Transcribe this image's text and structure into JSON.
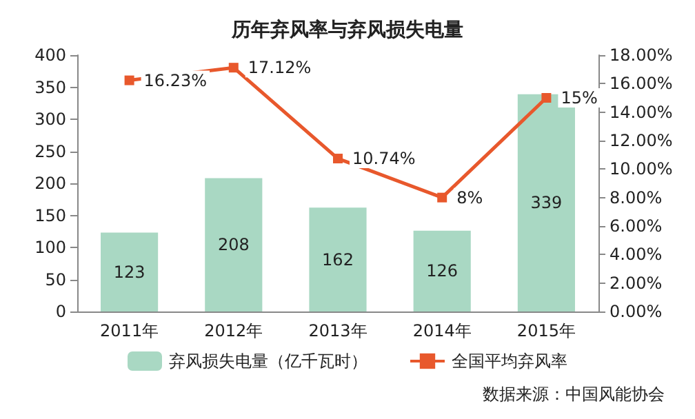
{
  "chart_data": {
    "type": "bar",
    "title": "历年弃风率与弃风损失电量",
    "categories": [
      "2011年",
      "2012年",
      "2013年",
      "2014年",
      "2015年"
    ],
    "series": [
      {
        "name": "弃风损失电量（亿千瓦时）",
        "color": "#a9d8c3",
        "values": [
          123,
          208,
          162,
          126,
          339
        ],
        "value_labels": [
          "123",
          "208",
          "162",
          "126",
          "339"
        ]
      },
      {
        "name": "全国平均弃风率",
        "type": "line",
        "axis": "y2",
        "color": "#e8582c",
        "values": [
          16.23,
          17.12,
          10.74,
          8,
          15
        ],
        "value_labels": [
          "16.23%",
          "17.12%",
          "10.74%",
          "8%",
          "15%"
        ],
        "marker": "square"
      }
    ],
    "ylim": [
      0,
      400
    ],
    "yticks": [
      0,
      50,
      100,
      150,
      200,
      250,
      300,
      350,
      400
    ],
    "y2lim": [
      0,
      18
    ],
    "y2ticks": [
      {
        "value": 0,
        "label": "0.00%"
      },
      {
        "value": 2,
        "label": "2.00%"
      },
      {
        "value": 4,
        "label": "4.00%"
      },
      {
        "value": 6,
        "label": "6.00%"
      },
      {
        "value": 8,
        "label": "8.00%"
      },
      {
        "value": 10,
        "label": "10.00%"
      },
      {
        "value": 12,
        "label": "12.00%"
      },
      {
        "value": 14,
        "label": "14.00%"
      },
      {
        "value": 16,
        "label": "16.00%"
      },
      {
        "value": 18,
        "label": "18.00%"
      }
    ],
    "grid": false,
    "legend": "bottom",
    "annotations": [
      "数据来源：中国风能协会"
    ]
  }
}
